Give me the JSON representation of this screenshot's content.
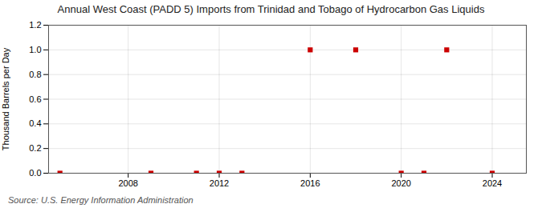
{
  "chart_data": {
    "type": "scatter",
    "title": "Annual West Coast (PADD 5) Imports from Trinidad and Tobago of Hydrocarbon Gas Liquids",
    "ylabel": "Thousand Barrels per Day",
    "source": "Source: U.S. Energy Information Administration",
    "x": [
      2005,
      2009,
      2011,
      2012,
      2013,
      2016,
      2018,
      2020,
      2021,
      2022,
      2024
    ],
    "values": [
      0.0,
      0.0,
      0.0,
      0.0,
      0.0,
      1.0,
      1.0,
      0.0,
      0.0,
      1.0,
      0.0
    ],
    "color": "#cc0000",
    "marker": "square",
    "xlim": [
      2004.5,
      2025.5
    ],
    "xticks": [
      2008,
      2012,
      2016,
      2020,
      2024
    ],
    "ylim": [
      0.0,
      1.2
    ],
    "yticks": [
      {
        "value": 0.0,
        "label": "0.0"
      },
      0.2,
      0.4,
      0.6,
      0.8,
      {
        "value": 1.0,
        "label": "1.0"
      },
      1.2
    ],
    "grid": true
  }
}
